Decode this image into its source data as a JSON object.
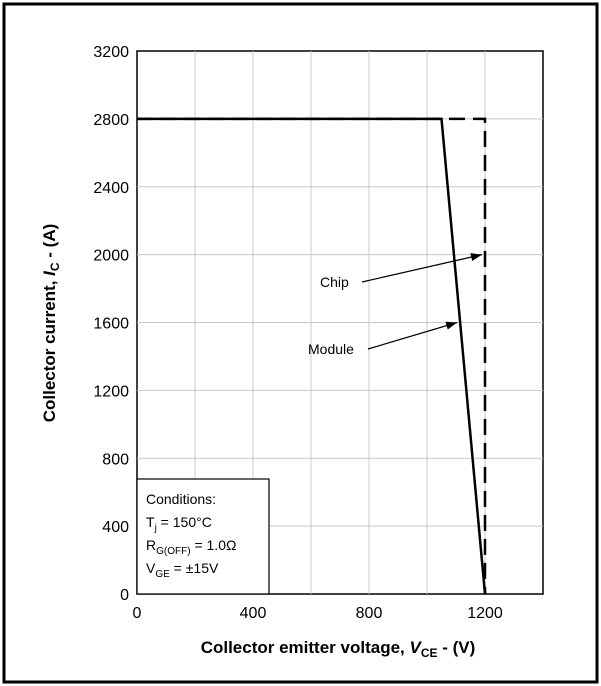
{
  "chart_data": {
    "type": "line",
    "xlabel": "Collector emitter voltage, V_CE - (V)",
    "ylabel": "Collector current, I_C - (A)",
    "xlim": [
      0,
      1400
    ],
    "ylim": [
      0,
      3200
    ],
    "x_ticks": [
      0,
      400,
      800,
      1200
    ],
    "y_ticks": [
      0,
      400,
      800,
      1200,
      1600,
      2000,
      2400,
      2800,
      3200
    ],
    "grid": true,
    "series": [
      {
        "name": "Module",
        "style": "solid",
        "x": [
          0,
          1050,
          1200
        ],
        "y": [
          2800,
          2800,
          0
        ]
      },
      {
        "name": "Chip",
        "style": "dashed",
        "x": [
          0,
          1200,
          1200
        ],
        "y": [
          2800,
          2800,
          0
        ]
      }
    ],
    "annotations": [
      {
        "text": "Chip",
        "points_to": "Chip"
      },
      {
        "text": "Module",
        "points_to": "Module"
      }
    ],
    "conditions": {
      "heading": "Conditions:",
      "lines": [
        {
          "symbol": "T",
          "sub": "j",
          "value": " = 150°C"
        },
        {
          "symbol": "R",
          "sub": "G(OFF)",
          "value": " = 1.0Ω"
        },
        {
          "symbol": "V",
          "sub": "GE",
          "value": " = ±15V"
        }
      ]
    }
  }
}
